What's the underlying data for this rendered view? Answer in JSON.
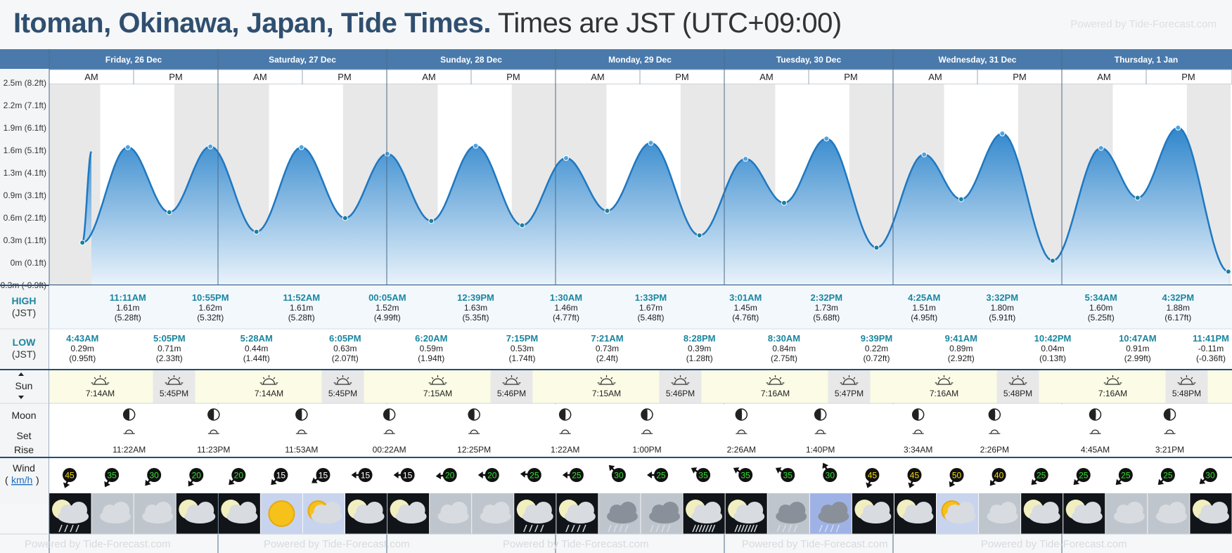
{
  "header": {
    "title": "Itoman, Okinawa, Japan, Tide Times.",
    "timezone": "Times are JST (UTC+09:00)",
    "powered_by": "Powered by Tide-Forecast.com"
  },
  "labels": {
    "high": "HIGH",
    "high_tz": "(JST)",
    "low": "LOW",
    "low_tz": "(JST)",
    "sun": "Sun",
    "moon": "Moon",
    "set": "Set",
    "rise": "Rise",
    "wind": "Wind",
    "wind_unit": "km/h",
    "am": "AM",
    "pm": "PM",
    "footer": "Powered by Tide-Forecast.com"
  },
  "chart_data": {
    "type": "area",
    "title": "Itoman, Okinawa, Japan, Tide Times.",
    "y_ticks": [
      "-0.3m (-0.9ft)",
      "0m (0.1ft)",
      "0.3m (1.1ft)",
      "0.6m (2.1ft)",
      "0.9m (3.1ft)",
      "1.3m (4.1ft)",
      "1.6m (5.1ft)",
      "1.9m (6.1ft)",
      "2.2m (7.1ft)",
      "2.5m (8.2ft)"
    ],
    "ylim": [
      -0.3,
      2.5
    ],
    "days": [
      {
        "label": "Friday, 26 Dec",
        "sunrise": "7:14AM",
        "sunset": "5:45PM",
        "moon_set": "11:22AM",
        "moon_rise": "11:23PM"
      },
      {
        "label": "Saturday, 27 Dec",
        "sunrise": "7:14AM",
        "sunset": "5:45PM",
        "moon_set": "11:53AM",
        "moon_rise": ""
      },
      {
        "label": "Sunday, 28 Dec",
        "sunrise": "7:15AM",
        "sunset": "5:46PM",
        "moon_set": "00:22AM",
        "moon_rise": "12:25PM"
      },
      {
        "label": "Monday, 29 Dec",
        "sunrise": "7:15AM",
        "sunset": "5:46PM",
        "moon_set": "1:22AM",
        "moon_rise": "1:00PM"
      },
      {
        "label": "Tuesday, 30 Dec",
        "sunrise": "7:16AM",
        "sunset": "5:47PM",
        "moon_set": "2:26AM",
        "moon_rise": "1:40PM"
      },
      {
        "label": "Wednesday, 31 Dec",
        "sunrise": "7:16AM",
        "sunset": "5:48PM",
        "moon_set": "3:34AM",
        "moon_rise": "2:26PM"
      },
      {
        "label": "Thursday, 1 Jan",
        "sunrise": "7:16AM",
        "sunset": "5:48PM",
        "moon_set": "4:45AM",
        "moon_rise": "3:21PM"
      }
    ],
    "tides": [
      {
        "type": "high",
        "day": 0,
        "time": "",
        "m": 1.55,
        "h": 6.0,
        "label_m": "",
        "label_ft": ""
      },
      {
        "type": "low",
        "day": 0,
        "time": "4:43AM",
        "m": 0.29,
        "h": 4.72,
        "label_m": "0.29m",
        "label_ft": "(0.95ft)"
      },
      {
        "type": "high",
        "day": 0,
        "time": "11:11AM",
        "m": 1.61,
        "h": 11.18,
        "label_m": "1.61m",
        "label_ft": "(5.28ft)"
      },
      {
        "type": "low",
        "day": 0,
        "time": "5:05PM",
        "m": 0.71,
        "h": 17.08,
        "label_m": "0.71m",
        "label_ft": "(2.33ft)"
      },
      {
        "type": "high",
        "day": 0,
        "time": "10:55PM",
        "m": 1.62,
        "h": 22.92,
        "label_m": "1.62m",
        "label_ft": "(5.32ft)"
      },
      {
        "type": "low",
        "day": 1,
        "time": "5:28AM",
        "m": 0.44,
        "h": 5.47,
        "label_m": "0.44m",
        "label_ft": "(1.44ft)"
      },
      {
        "type": "high",
        "day": 1,
        "time": "11:52AM",
        "m": 1.61,
        "h": 11.87,
        "label_m": "1.61m",
        "label_ft": "(5.28ft)"
      },
      {
        "type": "low",
        "day": 1,
        "time": "6:05PM",
        "m": 0.63,
        "h": 18.08,
        "label_m": "0.63m",
        "label_ft": "(2.07ft)"
      },
      {
        "type": "high",
        "day": 2,
        "time": "00:05AM",
        "m": 1.52,
        "h": 0.08,
        "label_m": "1.52m",
        "label_ft": "(4.99ft)"
      },
      {
        "type": "low",
        "day": 2,
        "time": "6:20AM",
        "m": 0.59,
        "h": 6.33,
        "label_m": "0.59m",
        "label_ft": "(1.94ft)"
      },
      {
        "type": "high",
        "day": 2,
        "time": "12:39PM",
        "m": 1.63,
        "h": 12.65,
        "label_m": "1.63m",
        "label_ft": "(5.35ft)"
      },
      {
        "type": "low",
        "day": 2,
        "time": "7:15PM",
        "m": 0.53,
        "h": 19.25,
        "label_m": "0.53m",
        "label_ft": "(1.74ft)"
      },
      {
        "type": "high",
        "day": 3,
        "time": "1:30AM",
        "m": 1.46,
        "h": 1.5,
        "label_m": "1.46m",
        "label_ft": "(4.77ft)"
      },
      {
        "type": "low",
        "day": 3,
        "time": "7:21AM",
        "m": 0.73,
        "h": 7.35,
        "label_m": "0.73m",
        "label_ft": "(2.4ft)"
      },
      {
        "type": "high",
        "day": 3,
        "time": "1:33PM",
        "m": 1.67,
        "h": 13.55,
        "label_m": "1.67m",
        "label_ft": "(5.48ft)"
      },
      {
        "type": "low",
        "day": 3,
        "time": "8:28PM",
        "m": 0.39,
        "h": 20.47,
        "label_m": "0.39m",
        "label_ft": "(1.28ft)"
      },
      {
        "type": "high",
        "day": 4,
        "time": "3:01AM",
        "m": 1.45,
        "h": 3.02,
        "label_m": "1.45m",
        "label_ft": "(4.76ft)"
      },
      {
        "type": "low",
        "day": 4,
        "time": "8:30AM",
        "m": 0.84,
        "h": 8.5,
        "label_m": "0.84m",
        "label_ft": "(2.75ft)"
      },
      {
        "type": "high",
        "day": 4,
        "time": "2:32PM",
        "m": 1.73,
        "h": 14.53,
        "label_m": "1.73m",
        "label_ft": "(5.68ft)"
      },
      {
        "type": "low",
        "day": 4,
        "time": "9:39PM",
        "m": 0.22,
        "h": 21.65,
        "label_m": "0.22m",
        "label_ft": "(0.72ft)"
      },
      {
        "type": "high",
        "day": 5,
        "time": "4:25AM",
        "m": 1.51,
        "h": 4.42,
        "label_m": "1.51m",
        "label_ft": "(4.95ft)"
      },
      {
        "type": "low",
        "day": 5,
        "time": "9:41AM",
        "m": 0.89,
        "h": 9.68,
        "label_m": "0.89m",
        "label_ft": "(2.92ft)"
      },
      {
        "type": "high",
        "day": 5,
        "time": "3:32PM",
        "m": 1.8,
        "h": 15.53,
        "label_m": "1.80m",
        "label_ft": "(5.91ft)"
      },
      {
        "type": "low",
        "day": 5,
        "time": "10:42PM",
        "m": 0.04,
        "h": 22.7,
        "label_m": "0.04m",
        "label_ft": "(0.13ft)"
      },
      {
        "type": "high",
        "day": 6,
        "time": "5:34AM",
        "m": 1.6,
        "h": 5.57,
        "label_m": "1.60m",
        "label_ft": "(5.25ft)"
      },
      {
        "type": "low",
        "day": 6,
        "time": "10:47AM",
        "m": 0.91,
        "h": 10.78,
        "label_m": "0.91m",
        "label_ft": "(2.99ft)"
      },
      {
        "type": "high",
        "day": 6,
        "time": "4:32PM",
        "m": 1.88,
        "h": 16.53,
        "label_m": "1.88m",
        "label_ft": "(6.17ft)"
      },
      {
        "type": "low",
        "day": 6,
        "time": "11:41PM",
        "m": -0.11,
        "h": 23.68,
        "label_m": "-0.11m",
        "label_ft": "(-0.36ft)"
      }
    ],
    "wind": [
      {
        "speed": "45",
        "color": "#f5d90a",
        "dir": 200
      },
      {
        "speed": "35",
        "color": "#2fe02f",
        "dir": 210
      },
      {
        "speed": "30",
        "color": "#2fe02f",
        "dir": 220
      },
      {
        "speed": "20",
        "color": "#2fe02f",
        "dir": 215
      },
      {
        "speed": "20",
        "color": "#2fe02f",
        "dir": 225
      },
      {
        "speed": "15",
        "color": "#ffffff",
        "dir": 225
      },
      {
        "speed": "15",
        "color": "#ffffff",
        "dir": 235
      },
      {
        "speed": "15",
        "color": "#ffffff",
        "dir": 270
      },
      {
        "speed": "15",
        "color": "#ffffff",
        "dir": 270
      },
      {
        "speed": "20",
        "color": "#2fe02f",
        "dir": 265
      },
      {
        "speed": "20",
        "color": "#2fe02f",
        "dir": 270
      },
      {
        "speed": "25",
        "color": "#2fe02f",
        "dir": 275
      },
      {
        "speed": "25",
        "color": "#2fe02f",
        "dir": 270
      },
      {
        "speed": "30",
        "color": "#2fe02f",
        "dir": 315
      },
      {
        "speed": "25",
        "color": "#2fe02f",
        "dir": 270
      },
      {
        "speed": "35",
        "color": "#2fe02f",
        "dir": 300
      },
      {
        "speed": "35",
        "color": "#2fe02f",
        "dir": 300
      },
      {
        "speed": "35",
        "color": "#2fe02f",
        "dir": 300
      },
      {
        "speed": "30",
        "color": "#2fe02f",
        "dir": 330
      },
      {
        "speed": "45",
        "color": "#f5d90a",
        "dir": 200
      },
      {
        "speed": "45",
        "color": "#f5d90a",
        "dir": 200
      },
      {
        "speed": "50",
        "color": "#f5d90a",
        "dir": 210
      },
      {
        "speed": "40",
        "color": "#f5d90a",
        "dir": 220
      },
      {
        "speed": "25",
        "color": "#2fe02f",
        "dir": 225
      },
      {
        "speed": "25",
        "color": "#2fe02f",
        "dir": 225
      },
      {
        "speed": "25",
        "color": "#2fe02f",
        "dir": 225
      },
      {
        "speed": "25",
        "color": "#2fe02f",
        "dir": 225
      },
      {
        "speed": "30",
        "color": "#2fe02f",
        "dir": 230
      }
    ],
    "weather": [
      "night-rain",
      "cloudy",
      "cloudy",
      "night-cloudy",
      "night-cloudy",
      "sunny",
      "sun-cloud",
      "night-cloudy",
      "night-cloudy",
      "cloudy",
      "cloudy",
      "night-rain",
      "night-rain",
      "rain",
      "rain",
      "night-heavy-rain",
      "night-heavy-rain",
      "rain",
      "day-cloud-rain",
      "night-cloudy",
      "night-cloudy",
      "sun-cloud",
      "cloudy",
      "night-cloudy",
      "night-cloudy",
      "cloudy",
      "cloudy",
      "night-cloudy"
    ],
    "colors": {
      "header_blue": "#4a7aab",
      "tide_line": "#1f78c1",
      "tide_fill_top": "#2f86cc",
      "tide_fill_bottom": "#eaf3fb",
      "high_text": "#1a86a0",
      "low_text": "#1a86a0",
      "sun_band": "#fbfbe6"
    }
  }
}
